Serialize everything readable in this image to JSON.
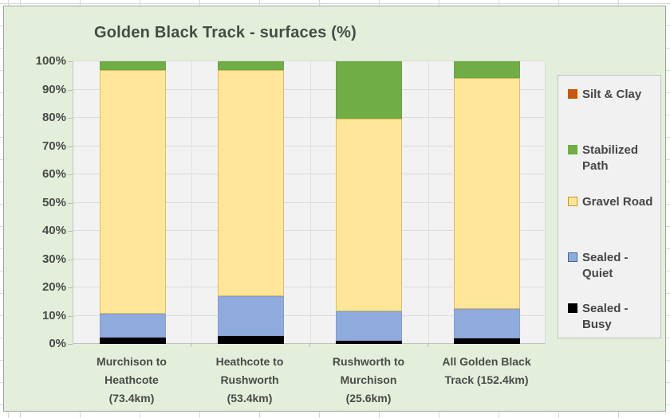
{
  "chart_data": {
    "type": "bar",
    "subtype": "stacked-100-percent",
    "title": "Golden Black Track - surfaces (%)",
    "categories": [
      "Murchison to\nHeathcote\n(73.4km)",
      "Heathcote to\nRushworth\n(53.4km)",
      "Rushworth to\nMurchison\n(25.6km)",
      "All Golden Black\nTrack (152.4km)"
    ],
    "series_bottom_to_top": [
      {
        "name": "Sealed - Busy",
        "color": "#000000",
        "border": "#000000",
        "values": [
          2.2,
          2.8,
          1.1,
          2.0
        ]
      },
      {
        "name": "Sealed - Quiet",
        "color": "#8faadc",
        "border": "#84a0d2",
        "values": [
          8.4,
          14.0,
          10.4,
          10.3
        ]
      },
      {
        "name": "Gravel Road",
        "color": "#ffe699",
        "border": "#dcbd62",
        "values": [
          86.4,
          80.2,
          68.2,
          81.7
        ]
      },
      {
        "name": "Stabilized Path",
        "color": "#70ad47",
        "border": "#6aa542",
        "values": [
          3.0,
          3.0,
          20.3,
          6.0
        ]
      },
      {
        "name": "Silt & Clay",
        "color": "#c55a11",
        "border": "#c55a11",
        "values": [
          0,
          0,
          0,
          0
        ]
      }
    ],
    "y_ticks": [
      "0%",
      "10%",
      "20%",
      "30%",
      "40%",
      "50%",
      "60%",
      "70%",
      "80%",
      "90%",
      "100%"
    ],
    "ylim": [
      0,
      100
    ],
    "grid": true,
    "legend_position": "right"
  },
  "legend": {
    "items": [
      {
        "label": "Silt & Clay",
        "color": "#c55a11",
        "border": "#c55a11"
      },
      {
        "label": "Stabilized\nPath",
        "color": "#70ad47",
        "border": "#70ad47"
      },
      {
        "label": "Gravel Road",
        "color": "#ffe699",
        "border": "#c09c2c"
      },
      {
        "label": "Sealed -\nQuiet",
        "color": "#8faadc",
        "border": "#41689f"
      },
      {
        "label": "Sealed - Busy",
        "color": "#000000",
        "border": "#000000"
      }
    ]
  },
  "colors": {
    "chart_background": "#e3efda",
    "plot_background": "#f2f2f2",
    "gridline": "#dcdcdc",
    "text": "#4a4a4a"
  }
}
